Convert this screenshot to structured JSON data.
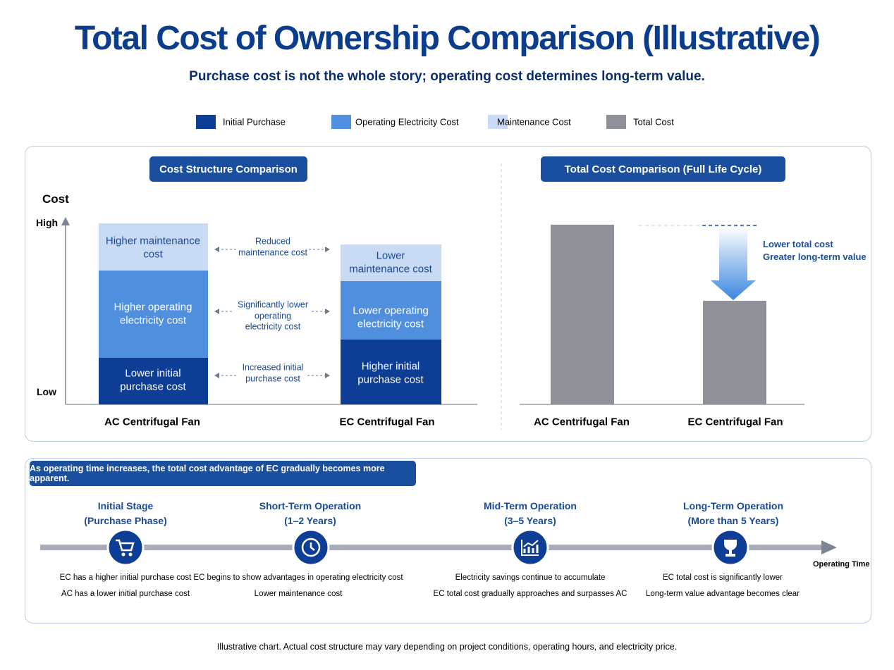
{
  "header": {
    "title": "Total Cost of Ownership Comparison (Illustrative)",
    "subtitle": "Purchase cost is not the whole story; operating cost determines long-term value."
  },
  "legend": [
    "Initial Purchase",
    "Operating Electricity Cost",
    "Maintenance Cost",
    "Total Cost"
  ],
  "structure_panel": {
    "title": "Cost Structure Comparison",
    "y_label": "Cost",
    "y_high": "High",
    "y_low": "Low",
    "ac": {
      "name": "AC Centrifugal Fan",
      "maintenance": [
        "Higher maintenance",
        "cost"
      ],
      "operating": [
        "Higher operating",
        "electricity cost"
      ],
      "purchase": [
        "Lower initial",
        "purchase cost"
      ]
    },
    "ec": {
      "name": "EC Centrifugal Fan",
      "maintenance": [
        "Lower",
        "maintenance cost"
      ],
      "operating": [
        "Lower operating",
        "electricity cost"
      ],
      "purchase": [
        "Higher initial",
        "purchase cost"
      ]
    },
    "comparisons": [
      [
        "Reduced",
        "maintenance cost"
      ],
      [
        "Significantly lower",
        "operating",
        "electricity cost"
      ],
      [
        "Increased initial",
        "purchase cost"
      ]
    ]
  },
  "total_panel": {
    "title": "Total Cost Comparison (Full Life Cycle)",
    "categories": [
      "AC Centrifugal Fan",
      "EC Centrifugal Fan"
    ],
    "note": [
      "Lower total cost",
      "Greater long-term value"
    ]
  },
  "timeline": {
    "banner": "As operating time increases, the total cost advantage of EC gradually becomes more apparent.",
    "axis_label": "Operating Time",
    "stages": [
      {
        "title": [
          "Initial Stage",
          "(Purchase Phase)"
        ],
        "notes": [
          "EC has a higher initial purchase cost",
          "AC has a lower initial purchase cost"
        ]
      },
      {
        "title": [
          "Short-Term Operation",
          "(1–2 Years)"
        ],
        "notes": [
          "EC begins to show advantages in operating electricity cost",
          "Lower maintenance cost"
        ]
      },
      {
        "title": [
          "Mid-Term Operation",
          "(3–5 Years)"
        ],
        "notes": [
          "Electricity savings continue to accumulate",
          "EC total cost gradually approaches and surpasses AC"
        ]
      },
      {
        "title": [
          "Long-Term Operation",
          "(More than 5 Years)"
        ],
        "notes": [
          "EC total cost is significantly lower",
          "Long-term value advantage becomes clear"
        ]
      }
    ]
  },
  "footnote": "Illustrative chart. Actual cost structure may vary depending on project conditions, operating hours, and electricity price."
}
